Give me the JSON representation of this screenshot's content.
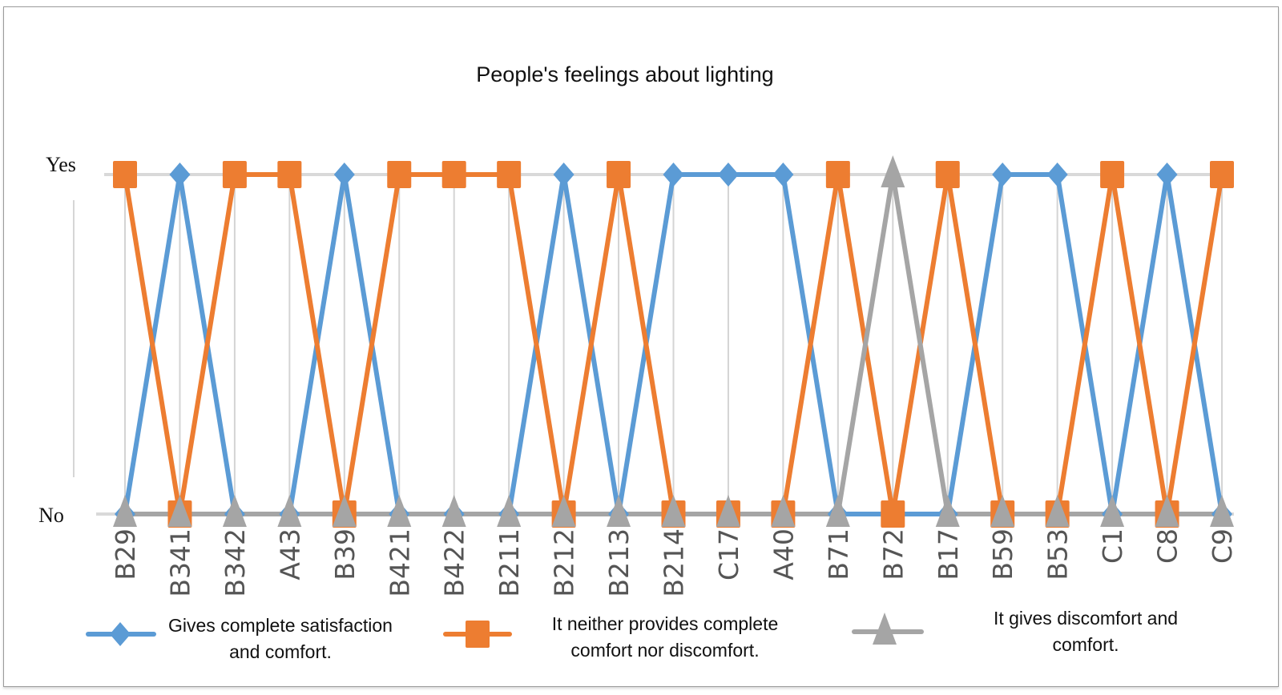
{
  "chart_data": {
    "type": "line",
    "title": "People's feelings about lighting",
    "xlabel": "",
    "ylabel": "",
    "y_tick_labels": [
      "No",
      "Yes"
    ],
    "ylim": [
      0,
      1
    ],
    "grid": true,
    "legend_position": "bottom",
    "categories": [
      "B29",
      "B341",
      "B342",
      "A43",
      "B39",
      "B421",
      "B422",
      "B211",
      "B212",
      "B213",
      "B214",
      "C17",
      "A40",
      "B71",
      "B72",
      "B17",
      "B59",
      "B53",
      "C1",
      "C8",
      "C9"
    ],
    "series": [
      {
        "name": "Gives complete satisfaction and comfort.",
        "legend_lines": [
          "Gives complete satisfaction",
          "and comfort."
        ],
        "color": "#5b9bd5",
        "marker": "diamond",
        "values": [
          0,
          1,
          0,
          0,
          1,
          0,
          0,
          0,
          1,
          0,
          1,
          1,
          1,
          0,
          0,
          0,
          1,
          1,
          0,
          1,
          0
        ]
      },
      {
        "name": "It neither provides complete comfort nor discomfort.",
        "legend_lines": [
          "It neither provides complete",
          "comfort nor discomfort."
        ],
        "color": "#ed7d31",
        "marker": "square",
        "values": [
          1,
          0,
          1,
          1,
          0,
          1,
          1,
          1,
          0,
          1,
          0,
          0,
          0,
          1,
          0,
          1,
          0,
          0,
          1,
          0,
          1
        ]
      },
      {
        "name": "It gives discomfort and comfort.",
        "legend_lines": [
          "It gives discomfort and",
          "comfort."
        ],
        "color": "#a5a5a5",
        "marker": "triangle",
        "values": [
          0,
          0,
          0,
          0,
          0,
          0,
          0,
          0,
          0,
          0,
          0,
          0,
          0,
          0,
          1,
          0,
          0,
          0,
          0,
          0,
          0
        ]
      }
    ]
  }
}
